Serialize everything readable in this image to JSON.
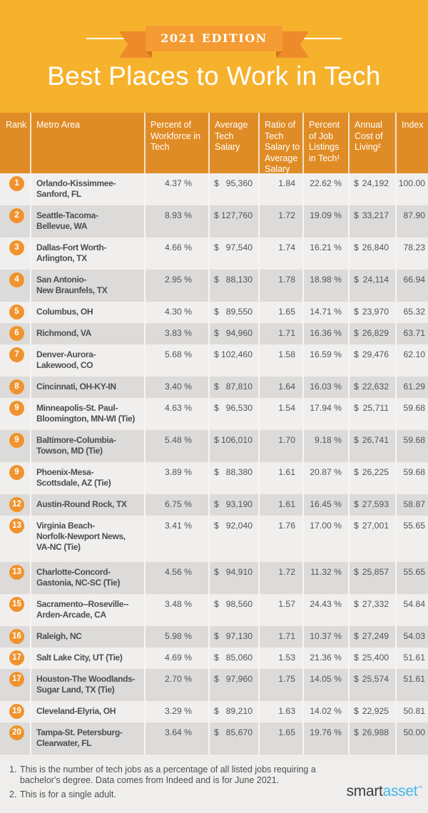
{
  "banner": {
    "edition": "2021 EDITION"
  },
  "title": "Best Places to Work in Tech",
  "colors": {
    "background_yellow": "#F6B22D",
    "table_header_orange": "#E08C26",
    "ribbon_orange": "#F49C33",
    "ribbon_tail_orange": "#ED8B2B",
    "rank_badge_orange": "#F0932E",
    "row_light": "#F0EFED",
    "row_dark": "#DCDBD9",
    "text_dark": "#4E4E50",
    "logo_blue": "#45B6E8"
  },
  "table": {
    "currency": "$",
    "columns": [
      "Rank",
      "Metro Area",
      "Percent of\nWorkforce in\nTech",
      "Average\nTech\nSalary",
      "Ratio of\nTech\nSalary to\nAverage\nSalary",
      "Percent\nof Job\nListings\nin Tech¹",
      "Annual\nCost of\nLiving²",
      "Index"
    ],
    "rows": [
      {
        "rank": "1",
        "metro": "Orlando-Kissimmee-\nSanford, FL",
        "workforce_pct": "4.37 %",
        "avg_salary": "95,360",
        "ratio": "1.84",
        "job_listings_pct": "22.62 %",
        "cost_of_living": "24,192",
        "index": "100.00"
      },
      {
        "rank": "2",
        "metro": "Seattle-Tacoma-\nBellevue, WA",
        "workforce_pct": "8.93 %",
        "avg_salary": "127,760",
        "ratio": "1.72",
        "job_listings_pct": "19.09 %",
        "cost_of_living": "33,217",
        "index": "87.90"
      },
      {
        "rank": "3",
        "metro": "Dallas-Fort Worth-\nArlington, TX",
        "workforce_pct": "4.66 %",
        "avg_salary": "97,540",
        "ratio": "1.74",
        "job_listings_pct": "16.21 %",
        "cost_of_living": "26,840",
        "index": "78.23"
      },
      {
        "rank": "4",
        "metro": "San Antonio-\nNew Braunfels, TX",
        "workforce_pct": "2.95 %",
        "avg_salary": "88,130",
        "ratio": "1.78",
        "job_listings_pct": "18.98 %",
        "cost_of_living": "24,114",
        "index": "66.94"
      },
      {
        "rank": "5",
        "metro": "Columbus, OH",
        "workforce_pct": "4.30 %",
        "avg_salary": "89,550",
        "ratio": "1.65",
        "job_listings_pct": "14.71 %",
        "cost_of_living": "23,970",
        "index": "65.32"
      },
      {
        "rank": "6",
        "metro": "Richmond, VA",
        "workforce_pct": "3.83 %",
        "avg_salary": "94,960",
        "ratio": "1.71",
        "job_listings_pct": "16.36 %",
        "cost_of_living": "26,829",
        "index": "63.71"
      },
      {
        "rank": "7",
        "metro": "Denver-Aurora-\nLakewood, CO",
        "workforce_pct": "5.68 %",
        "avg_salary": "102,460",
        "ratio": "1.58",
        "job_listings_pct": "16.59 %",
        "cost_of_living": "29,476",
        "index": "62.10"
      },
      {
        "rank": "8",
        "metro": "Cincinnati, OH-KY-IN",
        "workforce_pct": "3.40 %",
        "avg_salary": "87,810",
        "ratio": "1.64",
        "job_listings_pct": "16.03 %",
        "cost_of_living": "22,632",
        "index": "61.29"
      },
      {
        "rank": "9",
        "metro": "Minneapolis-St. Paul-\nBloomington, MN-WI (Tie)",
        "workforce_pct": "4.63 %",
        "avg_salary": "96,530",
        "ratio": "1.54",
        "job_listings_pct": "17.94 %",
        "cost_of_living": "25,711",
        "index": "59.68"
      },
      {
        "rank": "9",
        "metro": "Baltimore-Columbia-\nTowson, MD (Tie)",
        "workforce_pct": "5.48 %",
        "avg_salary": "106,010",
        "ratio": "1.70",
        "job_listings_pct": "9.18 %",
        "cost_of_living": "26,741",
        "index": "59.68"
      },
      {
        "rank": "9",
        "metro": "Phoenix-Mesa-\nScottsdale, AZ (Tie)",
        "workforce_pct": "3.89 %",
        "avg_salary": "88,380",
        "ratio": "1.61",
        "job_listings_pct": "20.87 %",
        "cost_of_living": "26,225",
        "index": "59.68"
      },
      {
        "rank": "12",
        "metro": "Austin-Round Rock, TX",
        "workforce_pct": "6.75 %",
        "avg_salary": "93,190",
        "ratio": "1.61",
        "job_listings_pct": "16.45 %",
        "cost_of_living": "27,593",
        "index": "58.87"
      },
      {
        "rank": "13",
        "metro": "Virginia Beach-\nNorfolk-Newport News,\nVA-NC (Tie)",
        "workforce_pct": "3.41 %",
        "avg_salary": "92,040",
        "ratio": "1.76",
        "job_listings_pct": "17.00 %",
        "cost_of_living": "27,001",
        "index": "55.65"
      },
      {
        "rank": "13",
        "metro": "Charlotte-Concord-\nGastonia, NC-SC (Tie)",
        "workforce_pct": "4.56 %",
        "avg_salary": "94,910",
        "ratio": "1.72",
        "job_listings_pct": "11.32 %",
        "cost_of_living": "25,857",
        "index": "55.65"
      },
      {
        "rank": "15",
        "metro": "Sacramento--Roseville--\nArden-Arcade, CA",
        "workforce_pct": "3.48 %",
        "avg_salary": "98,560",
        "ratio": "1.57",
        "job_listings_pct": "24.43 %",
        "cost_of_living": "27,332",
        "index": "54.84"
      },
      {
        "rank": "16",
        "metro": "Raleigh, NC",
        "workforce_pct": "5.98 %",
        "avg_salary": "97,130",
        "ratio": "1.71",
        "job_listings_pct": "10.37 %",
        "cost_of_living": "27,249",
        "index": "54.03"
      },
      {
        "rank": "17",
        "metro": "Salt Lake City, UT (Tie)",
        "workforce_pct": "4.69 %",
        "avg_salary": "85,060",
        "ratio": "1.53",
        "job_listings_pct": "21.36 %",
        "cost_of_living": "25,400",
        "index": "51.61"
      },
      {
        "rank": "17",
        "metro": "Houston-The Woodlands-\nSugar Land, TX (Tie)",
        "workforce_pct": "2.70 %",
        "avg_salary": "97,960",
        "ratio": "1.75",
        "job_listings_pct": "14.05 %",
        "cost_of_living": "25,574",
        "index": "51.61"
      },
      {
        "rank": "19",
        "metro": "Cleveland-Elyria, OH",
        "workforce_pct": "3.29 %",
        "avg_salary": "89,210",
        "ratio": "1.63",
        "job_listings_pct": "14.02 %",
        "cost_of_living": "22,925",
        "index": "50.81"
      },
      {
        "rank": "20",
        "metro": "Tampa-St. Petersburg-\nClearwater, FL",
        "workforce_pct": "3.64 %",
        "avg_salary": "85,670",
        "ratio": "1.65",
        "job_listings_pct": "19.76 %",
        "cost_of_living": "26,988",
        "index": "50.00"
      }
    ]
  },
  "footnotes": [
    {
      "num": "1.",
      "text": "This is the number of tech jobs as a percentage of all listed jobs requiring a\nbachelor's degree. Data comes from Indeed and is for June 2021."
    },
    {
      "num": "2.",
      "text": "This is for a single adult."
    }
  ],
  "logo": {
    "smart": "smart",
    "asset": "asset",
    "tm": "™"
  },
  "chart_data": {
    "type": "table",
    "title": "Best Places to Work in Tech",
    "subtitle": "2021 EDITION",
    "columns": [
      "Rank",
      "Metro Area",
      "Percent of Workforce in Tech",
      "Average Tech Salary",
      "Ratio of Tech Salary to Average Salary",
      "Percent of Job Listings in Tech",
      "Annual Cost of Living",
      "Index"
    ],
    "rows": [
      [
        1,
        "Orlando-Kissimmee-Sanford, FL",
        4.37,
        95360,
        1.84,
        22.62,
        24192,
        100.0
      ],
      [
        2,
        "Seattle-Tacoma-Bellevue, WA",
        8.93,
        127760,
        1.72,
        19.09,
        33217,
        87.9
      ],
      [
        3,
        "Dallas-Fort Worth-Arlington, TX",
        4.66,
        97540,
        1.74,
        16.21,
        26840,
        78.23
      ],
      [
        4,
        "San Antonio-New Braunfels, TX",
        2.95,
        88130,
        1.78,
        18.98,
        24114,
        66.94
      ],
      [
        5,
        "Columbus, OH",
        4.3,
        89550,
        1.65,
        14.71,
        23970,
        65.32
      ],
      [
        6,
        "Richmond, VA",
        3.83,
        94960,
        1.71,
        16.36,
        26829,
        63.71
      ],
      [
        7,
        "Denver-Aurora-Lakewood, CO",
        5.68,
        102460,
        1.58,
        16.59,
        29476,
        62.1
      ],
      [
        8,
        "Cincinnati, OH-KY-IN",
        3.4,
        87810,
        1.64,
        16.03,
        22632,
        61.29
      ],
      [
        9,
        "Minneapolis-St. Paul-Bloomington, MN-WI (Tie)",
        4.63,
        96530,
        1.54,
        17.94,
        25711,
        59.68
      ],
      [
        9,
        "Baltimore-Columbia-Towson, MD (Tie)",
        5.48,
        106010,
        1.7,
        9.18,
        26741,
        59.68
      ],
      [
        9,
        "Phoenix-Mesa-Scottsdale, AZ (Tie)",
        3.89,
        88380,
        1.61,
        20.87,
        26225,
        59.68
      ],
      [
        12,
        "Austin-Round Rock, TX",
        6.75,
        93190,
        1.61,
        16.45,
        27593,
        58.87
      ],
      [
        13,
        "Virginia Beach-Norfolk-Newport News, VA-NC (Tie)",
        3.41,
        92040,
        1.76,
        17.0,
        27001,
        55.65
      ],
      [
        13,
        "Charlotte-Concord-Gastonia, NC-SC (Tie)",
        4.56,
        94910,
        1.72,
        11.32,
        25857,
        55.65
      ],
      [
        15,
        "Sacramento--Roseville--Arden-Arcade, CA",
        3.48,
        98560,
        1.57,
        24.43,
        27332,
        54.84
      ],
      [
        16,
        "Raleigh, NC",
        5.98,
        97130,
        1.71,
        10.37,
        27249,
        54.03
      ],
      [
        17,
        "Salt Lake City, UT (Tie)",
        4.69,
        85060,
        1.53,
        21.36,
        25400,
        51.61
      ],
      [
        17,
        "Houston-The Woodlands-Sugar Land, TX (Tie)",
        2.7,
        97960,
        1.75,
        14.05,
        25574,
        51.61
      ],
      [
        19,
        "Cleveland-Elyria, OH",
        3.29,
        89210,
        1.63,
        14.02,
        22925,
        50.81
      ],
      [
        20,
        "Tampa-St. Petersburg-Clearwater, FL",
        3.64,
        85670,
        1.65,
        19.76,
        26988,
        50.0
      ]
    ]
  }
}
